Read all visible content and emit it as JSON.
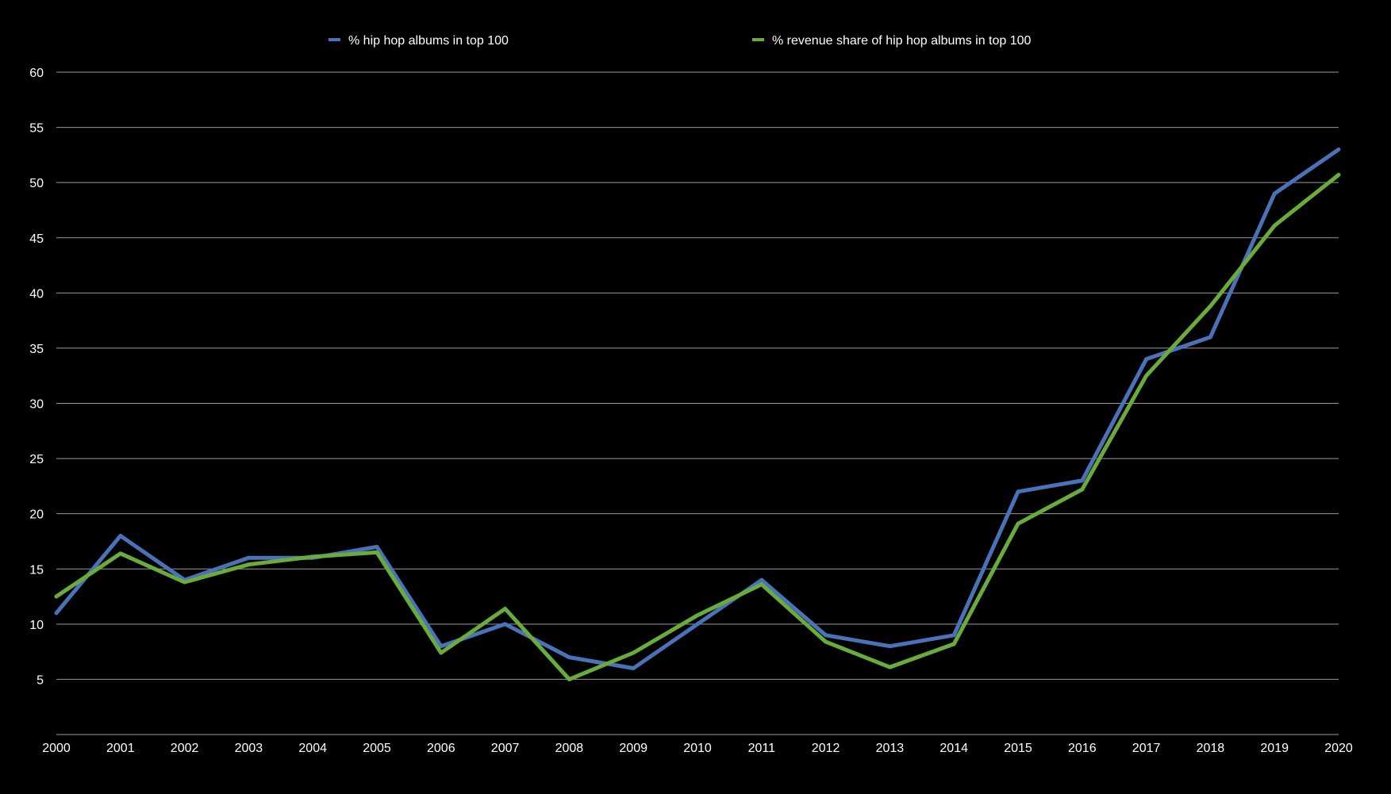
{
  "chart_data": {
    "type": "line",
    "title": "",
    "xlabel": "",
    "ylabel": "",
    "x": [
      "2000",
      "2001",
      "2002",
      "2003",
      "2004",
      "2005",
      "2006",
      "2007",
      "2008",
      "2009",
      "2010",
      "2011",
      "2012",
      "2013",
      "2014",
      "2015",
      "2016",
      "2017",
      "2018",
      "2019",
      "2020"
    ],
    "ylim": [
      0,
      60
    ],
    "yticks": [
      "5",
      "10",
      "15",
      "20",
      "25",
      "30",
      "35",
      "40",
      "45",
      "50",
      "55",
      "60"
    ],
    "grid": true,
    "legend_position": "top-center",
    "series": [
      {
        "name": "% hip hop albums in top 100",
        "color": "#4a72b8",
        "values": [
          11,
          18,
          14,
          16,
          16,
          17,
          8,
          10,
          7,
          6,
          10,
          14,
          9,
          8,
          9,
          22,
          23,
          34,
          36,
          49,
          53
        ]
      },
      {
        "name": "% revenue share of hip hop albums in top 100",
        "color": "#6aac3c",
        "values": [
          12.5,
          16.4,
          13.8,
          15.4,
          16.1,
          16.5,
          7.4,
          11.4,
          5.0,
          7.4,
          10.8,
          13.6,
          8.4,
          6.1,
          8.2,
          19.1,
          22.2,
          32.5,
          38.8,
          46.1,
          50.7
        ]
      }
    ]
  }
}
